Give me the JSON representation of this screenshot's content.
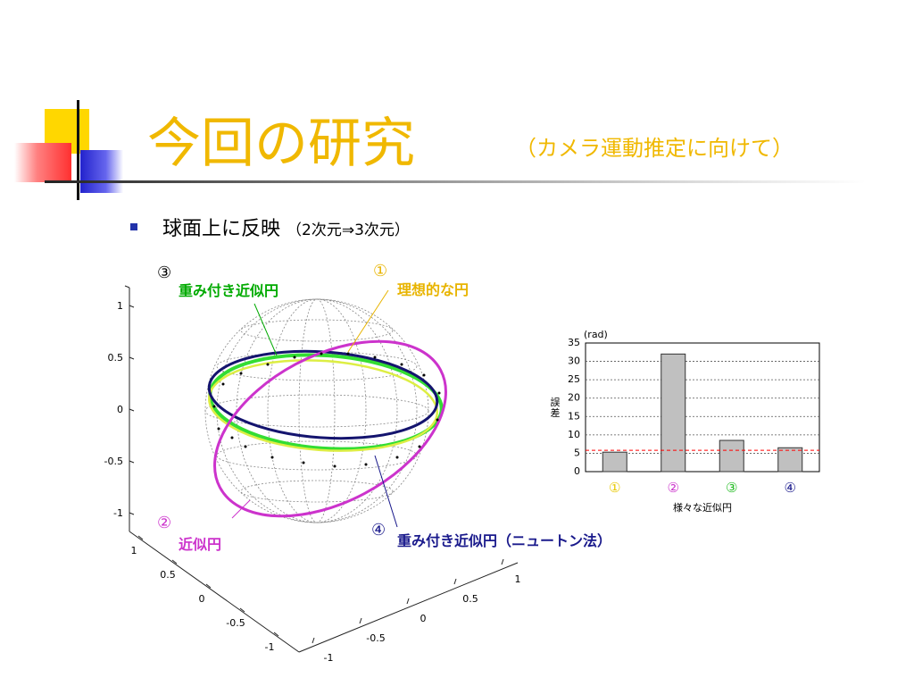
{
  "slide": {
    "title": "今回の研究",
    "subtitle": "（カメラ運動推定に向けて）",
    "bullet": {
      "text": "球面上に反映",
      "sub": "（2次元⇒3次元）"
    }
  },
  "annotations": {
    "a1": {
      "num": "①",
      "label": "理想的な円",
      "color": "#e8b400"
    },
    "a2": {
      "num": "②",
      "label": "近似円",
      "color": "#cc33cc"
    },
    "a3": {
      "num": "③",
      "label": "重み付き近似円",
      "color": "#00aa00"
    },
    "a4": {
      "num": "④",
      "label": "重み付き近似円（ニュートン法）",
      "color": "#1a1a8c"
    }
  },
  "sphere_axes": {
    "z_ticks": [
      "1",
      "0.5",
      "0",
      "-0.5",
      "-1"
    ],
    "x_ticks": [
      "1",
      "0.5",
      "0",
      "-0.5",
      "-1"
    ],
    "y_ticks": [
      "-1",
      "-0.5",
      "0",
      "0.5",
      "1"
    ]
  },
  "chart_data": {
    "type": "bar",
    "unit_label": "(rad)",
    "ylabel": "誤差",
    "xlabel": "様々な近似円",
    "categories": [
      "①",
      "②",
      "③",
      "④"
    ],
    "category_colors": [
      "#e8c800",
      "#cc33cc",
      "#22bb22",
      "#1a1a8c"
    ],
    "values": [
      5.3,
      32,
      8.5,
      6.5
    ],
    "ylim": [
      0,
      35
    ],
    "yticks": [
      "0",
      "5",
      "10",
      "15",
      "20",
      "25",
      "30",
      "35"
    ],
    "reference_line": 5.8,
    "reference_color": "#ff0000",
    "bar_color": "#c0c0c0",
    "grid": true
  }
}
